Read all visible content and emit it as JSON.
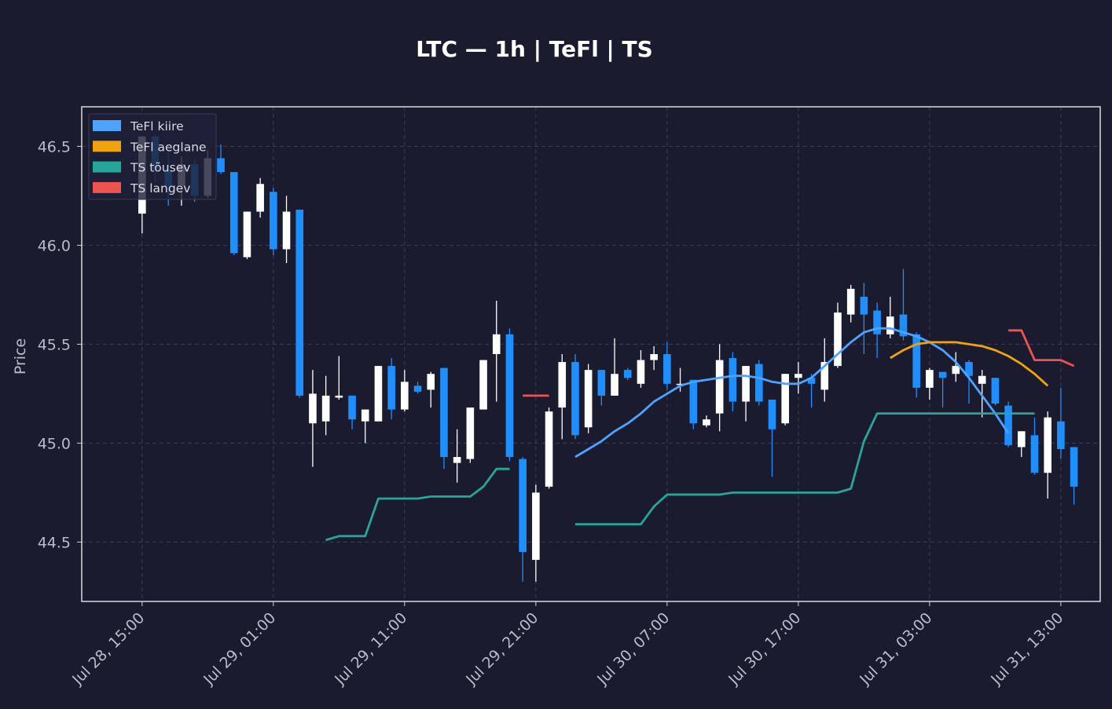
{
  "chart_data": {
    "type": "candlestick",
    "title": "LTC — 1h  |  TeFl  |  TS",
    "ylabel": "Price",
    "xlabel": "",
    "ylim": [
      44.2,
      46.7
    ],
    "xlim": [
      -4.6,
      73.0
    ],
    "grid": true,
    "yticks": [
      44.5,
      45.0,
      45.5,
      46.0,
      46.5
    ],
    "ytick_labels": [
      "44.5",
      "45.0",
      "45.5",
      "46.0",
      "46.5"
    ],
    "xticks": [
      0,
      10,
      20,
      30,
      40,
      50,
      60,
      70
    ],
    "xtick_labels": [
      "Jul 28, 15:00",
      "Jul 29, 01:00",
      "Jul 29, 11:00",
      "Jul 29, 21:00",
      "Jul 30, 07:00",
      "Jul 30, 17:00",
      "Jul 31, 03:00",
      "Jul 31, 13:00"
    ],
    "up_color": "#ffffff",
    "down_color": "#1e8fff",
    "legend": {
      "position": "top-left",
      "entries": [
        {
          "label": "TeFl kiire",
          "color": "#4da3ff"
        },
        {
          "label": "TeFl aeglane",
          "color": "#f0a30a"
        },
        {
          "label": "TS tõusev",
          "color": "#26a69a"
        },
        {
          "label": "TS langev",
          "color": "#ef5350"
        }
      ]
    },
    "candles": [
      [
        46.16,
        46.55,
        46.06,
        46.55
      ],
      [
        46.55,
        46.56,
        46.32,
        46.38
      ],
      [
        46.38,
        46.48,
        46.2,
        46.3
      ],
      [
        46.3,
        46.45,
        46.2,
        46.41
      ],
      [
        46.41,
        46.43,
        46.22,
        46.25
      ],
      [
        46.25,
        46.48,
        46.24,
        46.44
      ],
      [
        46.44,
        46.51,
        46.36,
        46.37
      ],
      [
        46.37,
        46.37,
        45.95,
        45.96
      ],
      [
        45.94,
        46.17,
        45.93,
        46.17
      ],
      [
        46.17,
        46.34,
        46.14,
        46.31
      ],
      [
        46.27,
        46.29,
        45.95,
        45.98
      ],
      [
        45.98,
        46.25,
        45.91,
        46.17
      ],
      [
        46.18,
        46.18,
        45.23,
        45.24
      ],
      [
        45.1,
        45.37,
        44.88,
        45.25
      ],
      [
        45.11,
        45.34,
        45.04,
        45.24
      ],
      [
        45.23,
        45.44,
        45.22,
        45.24
      ],
      [
        45.24,
        45.24,
        45.07,
        45.12
      ],
      [
        45.11,
        45.17,
        45.0,
        45.17
      ],
      [
        45.11,
        45.39,
        45.11,
        45.39
      ],
      [
        45.39,
        45.43,
        45.12,
        45.17
      ],
      [
        45.17,
        45.37,
        45.16,
        45.31
      ],
      [
        45.29,
        45.31,
        45.25,
        45.26
      ],
      [
        45.27,
        45.36,
        45.18,
        45.35
      ],
      [
        45.38,
        45.38,
        44.87,
        44.93
      ],
      [
        44.9,
        45.07,
        44.8,
        44.93
      ],
      [
        44.92,
        45.18,
        44.9,
        45.18
      ],
      [
        45.17,
        45.42,
        45.17,
        45.42
      ],
      [
        45.45,
        45.72,
        45.21,
        45.55
      ],
      [
        45.55,
        45.58,
        44.91,
        44.93
      ],
      [
        44.92,
        44.93,
        44.3,
        44.45
      ],
      [
        44.41,
        44.79,
        44.3,
        44.75
      ],
      [
        44.78,
        45.18,
        44.77,
        45.16
      ],
      [
        45.18,
        45.45,
        45.02,
        45.41
      ],
      [
        45.41,
        45.45,
        45.02,
        45.04
      ],
      [
        45.08,
        45.4,
        45.05,
        45.37
      ],
      [
        45.37,
        45.37,
        45.19,
        45.24
      ],
      [
        45.24,
        45.53,
        45.24,
        45.35
      ],
      [
        45.37,
        45.38,
        45.32,
        45.33
      ],
      [
        45.3,
        45.47,
        45.28,
        45.42
      ],
      [
        45.42,
        45.49,
        45.37,
        45.45
      ],
      [
        45.45,
        45.51,
        45.27,
        45.3
      ],
      [
        45.3,
        45.38,
        45.26,
        45.3
      ],
      [
        45.32,
        45.32,
        45.07,
        45.1
      ],
      [
        45.09,
        45.14,
        45.08,
        45.12
      ],
      [
        45.15,
        45.5,
        45.06,
        45.42
      ],
      [
        45.43,
        45.46,
        45.16,
        45.21
      ],
      [
        45.21,
        45.39,
        45.11,
        45.39
      ],
      [
        45.4,
        45.42,
        45.19,
        45.21
      ],
      [
        45.22,
        45.22,
        44.83,
        45.07
      ],
      [
        45.1,
        45.35,
        45.09,
        45.35
      ],
      [
        45.33,
        45.41,
        45.25,
        45.35
      ],
      [
        45.33,
        45.35,
        45.18,
        45.3
      ],
      [
        45.27,
        45.53,
        45.21,
        45.41
      ],
      [
        45.39,
        45.71,
        45.38,
        45.66
      ],
      [
        45.65,
        45.8,
        45.61,
        45.78
      ],
      [
        45.74,
        45.81,
        45.45,
        45.65
      ],
      [
        45.67,
        45.71,
        45.43,
        45.55
      ],
      [
        45.55,
        45.74,
        45.53,
        45.64
      ],
      [
        45.65,
        45.88,
        45.52,
        45.54
      ],
      [
        45.55,
        45.56,
        45.23,
        45.28
      ],
      [
        45.28,
        45.38,
        45.22,
        45.37
      ],
      [
        45.36,
        45.36,
        45.18,
        45.33
      ],
      [
        45.35,
        45.46,
        45.31,
        45.39
      ],
      [
        45.41,
        45.42,
        45.2,
        45.34
      ],
      [
        45.3,
        45.37,
        45.13,
        45.34
      ],
      [
        45.33,
        45.33,
        45.19,
        45.2
      ],
      [
        45.19,
        45.21,
        44.98,
        44.99
      ],
      [
        44.98,
        45.06,
        44.93,
        45.06
      ],
      [
        45.04,
        45.13,
        44.84,
        44.85
      ],
      [
        44.85,
        45.16,
        44.72,
        45.13
      ],
      [
        45.11,
        45.28,
        44.92,
        44.97
      ],
      [
        44.98,
        44.98,
        44.69,
        44.78
      ]
    ],
    "series": [
      {
        "name": "TeFl kiire",
        "color": "#4da3ff",
        "start": 33,
        "values": [
          44.93,
          44.97,
          45.01,
          45.06,
          45.1,
          45.15,
          45.21,
          45.25,
          45.29,
          45.31,
          45.32,
          45.33,
          45.34,
          45.34,
          45.33,
          45.31,
          45.3,
          45.3,
          45.33,
          45.39,
          45.45,
          45.51,
          45.56,
          45.58,
          45.58,
          45.56,
          45.54,
          45.51,
          45.47,
          45.41,
          45.33,
          45.24,
          45.15,
          45.05
        ]
      },
      {
        "name": "TeFl aeglane",
        "color": "#f0a30a",
        "start": 57,
        "values": [
          45.43,
          45.47,
          45.5,
          45.51,
          45.51,
          45.51,
          45.5,
          45.49,
          45.47,
          45.44,
          45.4,
          45.35,
          45.29
        ]
      },
      {
        "name": "TS tõusev",
        "color": "#26a69a",
        "start": 14,
        "values": [
          44.51,
          44.53,
          44.53,
          44.53,
          44.72,
          44.72,
          44.72,
          44.72,
          44.73,
          44.73,
          44.73,
          44.73,
          44.78,
          44.87,
          44.87,
          null,
          null,
          null,
          null,
          44.59,
          44.59,
          44.59,
          44.59,
          44.59,
          44.59,
          44.68,
          44.74,
          44.74,
          44.74,
          44.74,
          44.74,
          44.75,
          44.75,
          44.75,
          44.75,
          44.75,
          44.75,
          44.75,
          44.75,
          44.75,
          44.77,
          45.01,
          45.15,
          45.15,
          45.15,
          45.15,
          45.15,
          45.15,
          45.15,
          45.15,
          45.15,
          45.15,
          45.15,
          45.15,
          45.15
        ]
      },
      {
        "name": "TS langev",
        "color": "#ef5350",
        "segments": [
          {
            "start": 29,
            "values": [
              45.24,
              45.24,
              45.24
            ]
          },
          {
            "start": 66,
            "values": [
              45.57,
              45.57,
              45.42,
              45.42,
              45.42,
              45.39
            ]
          }
        ]
      }
    ]
  }
}
